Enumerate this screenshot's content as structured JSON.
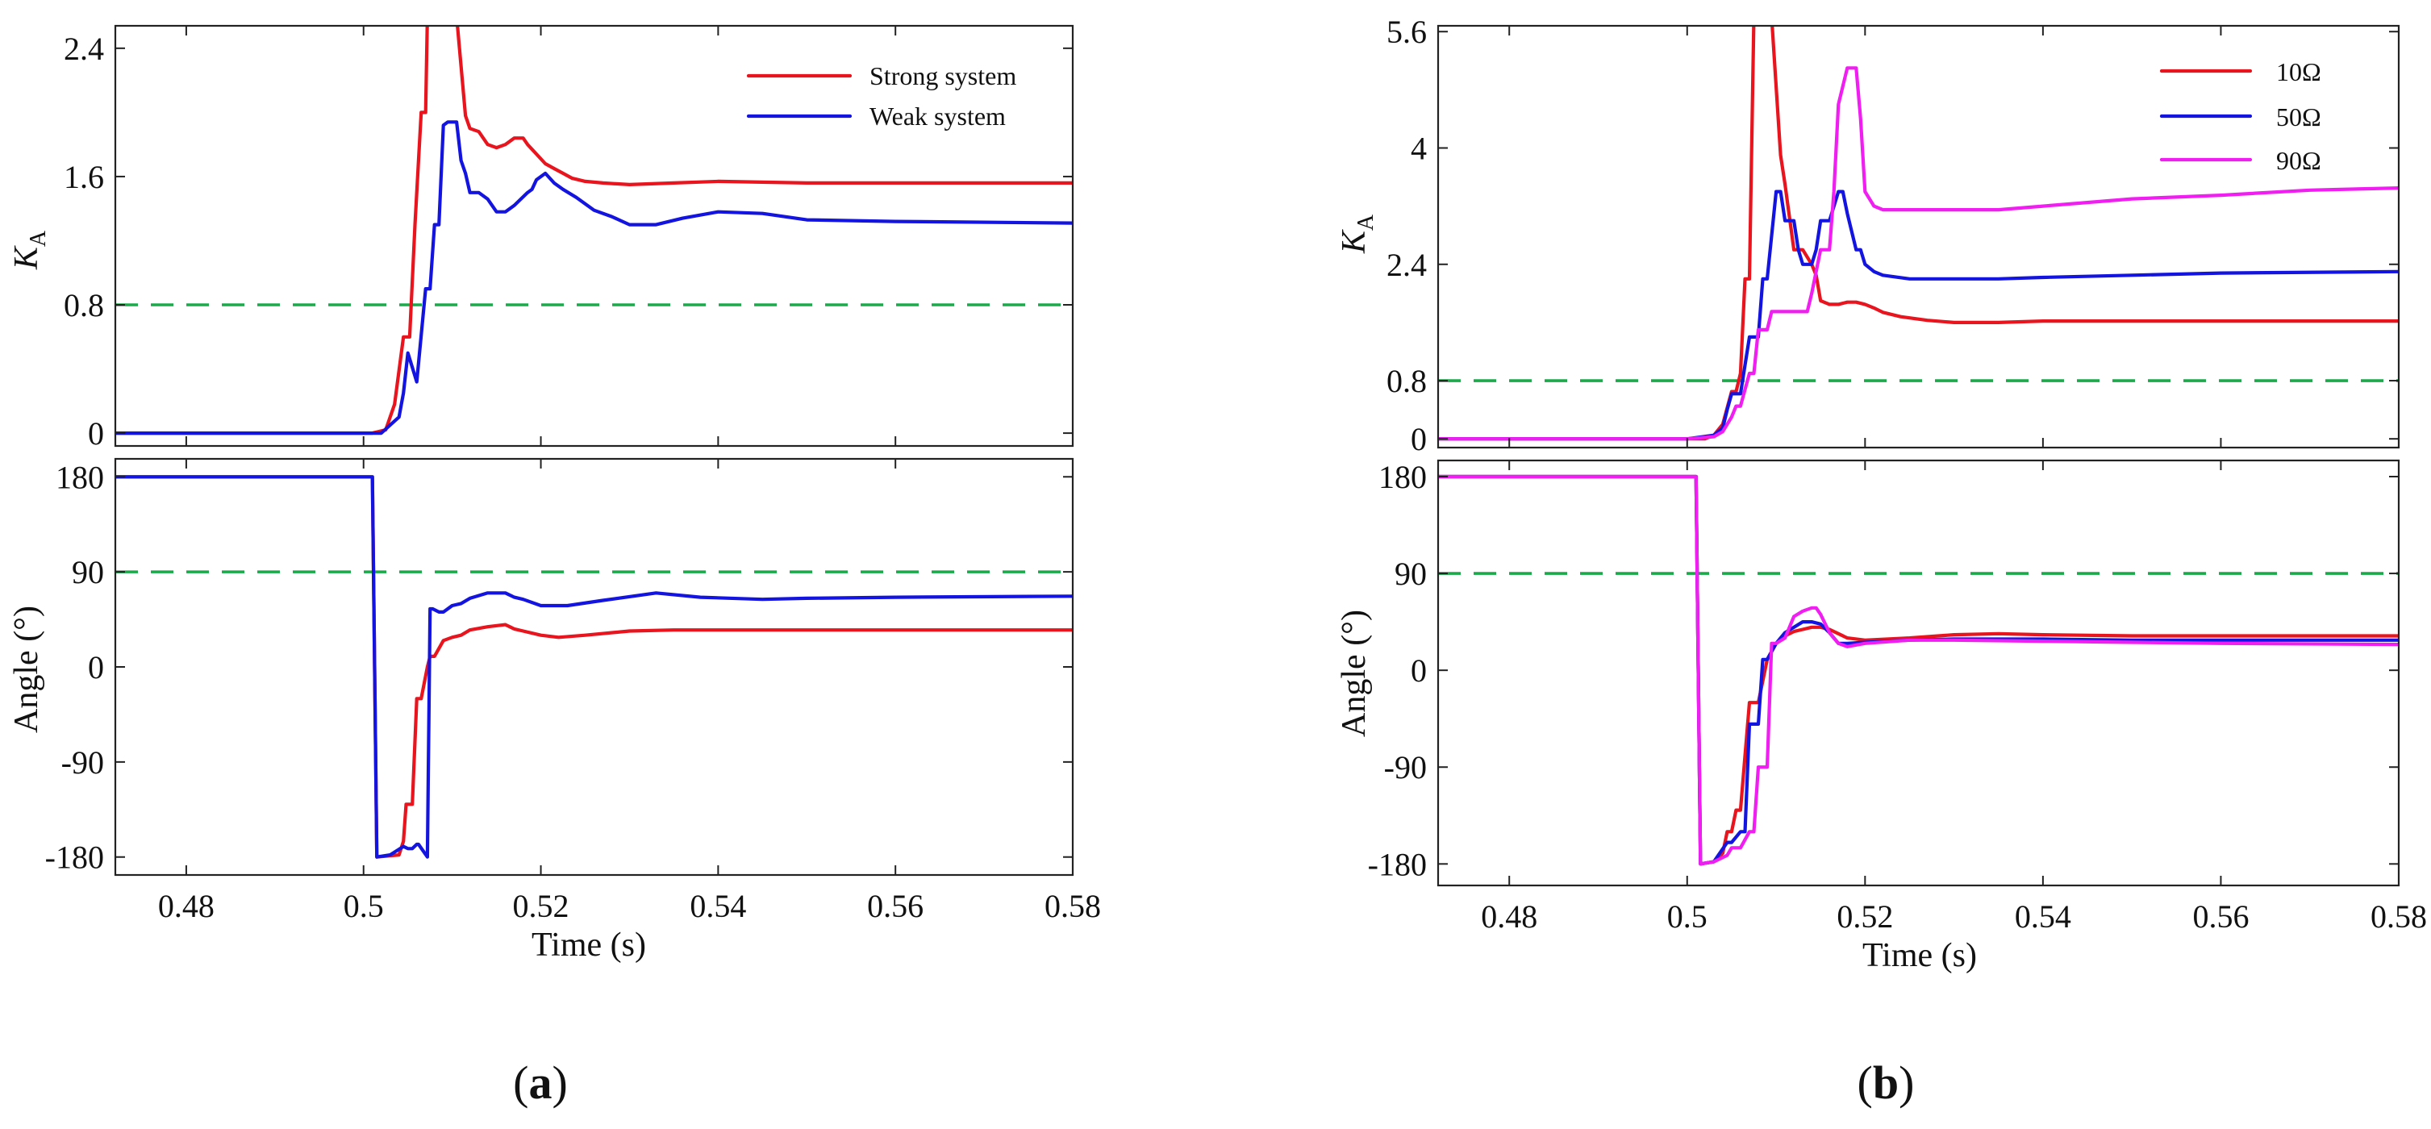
{
  "colors": {
    "strong": "#e8141e",
    "weak": "#1414e0",
    "r10": "#e8141e",
    "r50": "#1414e0",
    "r90": "#f01ef0",
    "threshold": "#1aaa4a",
    "axis": "#222222"
  },
  "chart_data": [
    {
      "type": "line",
      "panel_label": "a",
      "panel_label_display": "(a)",
      "xlabel": "Time (s)",
      "x_ticks": [
        "0.48",
        "0.5",
        "0.52",
        "0.54",
        "0.56",
        "0.58"
      ],
      "xlim": [
        0.472,
        0.58
      ],
      "legend_position": "top-right",
      "subplots": [
        {
          "ylabel": "K",
          "ylabel_sub": "A",
          "y_ticks": [
            "0",
            "0.8",
            "1.6",
            "2.4"
          ],
          "ylim": [
            -0.08,
            2.54
          ],
          "threshold": 0.8,
          "series": [
            {
              "name": "Strong system",
              "color_key": "strong",
              "x": [
                0.472,
                0.5,
                0.501,
                0.5025,
                0.5035,
                0.5045,
                0.5052,
                0.5058,
                0.5065,
                0.507,
                0.5072,
                0.5078,
                0.508,
                0.5095,
                0.5105,
                0.5115,
                0.512,
                0.513,
                0.514,
                0.515,
                0.516,
                0.517,
                0.518,
                0.5185,
                0.5195,
                0.5205,
                0.5215,
                0.5225,
                0.5235,
                0.525,
                0.527,
                0.53,
                0.535,
                0.54,
                0.55,
                0.56,
                0.58
              ],
              "y": [
                0,
                0,
                0,
                0.02,
                0.18,
                0.6,
                0.6,
                1.3,
                2.0,
                2.0,
                2.6,
                2.6,
                2.6,
                2.6,
                2.6,
                1.98,
                1.9,
                1.88,
                1.8,
                1.78,
                1.8,
                1.84,
                1.84,
                1.8,
                1.74,
                1.68,
                1.65,
                1.62,
                1.59,
                1.57,
                1.56,
                1.55,
                1.56,
                1.57,
                1.56,
                1.56,
                1.56
              ]
            },
            {
              "name": "Weak system",
              "color_key": "weak",
              "x": [
                0.472,
                0.5,
                0.502,
                0.503,
                0.504,
                0.5045,
                0.505,
                0.506,
                0.507,
                0.5075,
                0.508,
                0.5085,
                0.509,
                0.5095,
                0.5105,
                0.511,
                0.5115,
                0.512,
                0.513,
                0.514,
                0.515,
                0.516,
                0.517,
                0.5185,
                0.519,
                0.5195,
                0.5205,
                0.5215,
                0.5225,
                0.524,
                0.526,
                0.528,
                0.53,
                0.533,
                0.536,
                0.54,
                0.545,
                0.55,
                0.56,
                0.58
              ],
              "y": [
                0,
                0,
                0,
                0.05,
                0.1,
                0.25,
                0.5,
                0.32,
                0.9,
                0.9,
                1.3,
                1.3,
                1.92,
                1.94,
                1.94,
                1.7,
                1.62,
                1.5,
                1.5,
                1.46,
                1.38,
                1.38,
                1.42,
                1.5,
                1.52,
                1.58,
                1.62,
                1.56,
                1.52,
                1.47,
                1.39,
                1.35,
                1.3,
                1.3,
                1.34,
                1.38,
                1.37,
                1.33,
                1.32,
                1.31
              ]
            }
          ]
        },
        {
          "ylabel": "Angle (°)",
          "y_ticks": [
            "-180",
            "-90",
            "0",
            "90",
            "180"
          ],
          "ylim": [
            -197,
            197
          ],
          "threshold": 90,
          "series": [
            {
              "name": "Strong system",
              "color_key": "strong",
              "x": [
                0.472,
                0.501,
                0.5015,
                0.504,
                0.5045,
                0.5048,
                0.5055,
                0.506,
                0.5065,
                0.5072,
                0.5075,
                0.508,
                0.509,
                0.51,
                0.511,
                0.512,
                0.514,
                0.516,
                0.517,
                0.518,
                0.52,
                0.522,
                0.525,
                0.53,
                0.535,
                0.54,
                0.55,
                0.56,
                0.58
              ],
              "y": [
                180,
                180,
                -180,
                -178,
                -165,
                -130,
                -130,
                -30,
                -30,
                0,
                10,
                10,
                25,
                28,
                30,
                35,
                38,
                40,
                36,
                34,
                30,
                28,
                30,
                34,
                35,
                35,
                35,
                35,
                35
              ]
            },
            {
              "name": "Weak system",
              "color_key": "weak",
              "x": [
                0.472,
                0.501,
                0.5015,
                0.503,
                0.5045,
                0.505,
                0.5055,
                0.506,
                0.5062,
                0.5072,
                0.5075,
                0.5078,
                0.5085,
                0.509,
                0.51,
                0.511,
                0.512,
                0.514,
                0.516,
                0.517,
                0.518,
                0.52,
                0.523,
                0.527,
                0.533,
                0.538,
                0.545,
                0.55,
                0.56,
                0.58
              ],
              "y": [
                180,
                180,
                -180,
                -178,
                -170,
                -172,
                -172,
                -168,
                -168,
                -180,
                55,
                55,
                52,
                52,
                58,
                60,
                65,
                70,
                70,
                66,
                64,
                58,
                58,
                63,
                70,
                66,
                64,
                65,
                66,
                67
              ]
            }
          ]
        }
      ]
    },
    {
      "type": "line",
      "panel_label": "b",
      "panel_label_display": "(b)",
      "xlabel": "Time (s)",
      "x_ticks": [
        "0.48",
        "0.5",
        "0.52",
        "0.54",
        "0.56",
        "0.58"
      ],
      "xlim": [
        0.472,
        0.58
      ],
      "legend_position": "top-right",
      "subplots": [
        {
          "ylabel": "K",
          "ylabel_sub": "A",
          "y_ticks": [
            "0",
            "0.8",
            "2.4",
            "4",
            "5.6"
          ],
          "ylim": [
            -0.12,
            5.68
          ],
          "threshold": 0.8,
          "series": [
            {
              "name": "10Ω",
              "color_key": "r10",
              "x": [
                0.472,
                0.5,
                0.502,
                0.503,
                0.504,
                0.505,
                0.5055,
                0.506,
                0.5065,
                0.507,
                0.5075,
                0.508,
                0.5085,
                0.5095,
                0.5105,
                0.511,
                0.512,
                0.513,
                0.514,
                0.5145,
                0.515,
                0.516,
                0.517,
                0.518,
                0.519,
                0.52,
                0.521,
                0.522,
                0.524,
                0.527,
                0.53,
                0.535,
                0.54,
                0.55,
                0.56,
                0.58
              ],
              "y": [
                0,
                0,
                0,
                0.05,
                0.2,
                0.65,
                0.65,
                0.9,
                2.2,
                2.2,
                5.8,
                5.8,
                5.8,
                5.8,
                3.9,
                3.5,
                2.6,
                2.6,
                2.4,
                2.25,
                1.9,
                1.85,
                1.85,
                1.88,
                1.88,
                1.85,
                1.8,
                1.74,
                1.68,
                1.63,
                1.6,
                1.6,
                1.62,
                1.62,
                1.62,
                1.62
              ]
            },
            {
              "name": "50Ω",
              "color_key": "r50",
              "x": [
                0.472,
                0.5,
                0.503,
                0.504,
                0.5045,
                0.505,
                0.506,
                0.507,
                0.508,
                0.5085,
                0.509,
                0.51,
                0.5105,
                0.511,
                0.512,
                0.5125,
                0.513,
                0.514,
                0.5145,
                0.515,
                0.516,
                0.517,
                0.5175,
                0.518,
                0.519,
                0.5195,
                0.52,
                0.521,
                0.522,
                0.525,
                0.53,
                0.535,
                0.54,
                0.55,
                0.56,
                0.58
              ],
              "y": [
                0,
                0,
                0.05,
                0.15,
                0.4,
                0.62,
                0.62,
                1.4,
                1.4,
                2.2,
                2.2,
                3.4,
                3.4,
                3.0,
                3.0,
                2.6,
                2.4,
                2.4,
                2.6,
                3.0,
                3.0,
                3.4,
                3.4,
                3.1,
                2.6,
                2.6,
                2.4,
                2.3,
                2.25,
                2.2,
                2.2,
                2.2,
                2.22,
                2.25,
                2.28,
                2.3
              ]
            },
            {
              "name": "90Ω",
              "color_key": "r90",
              "x": [
                0.472,
                0.5,
                0.503,
                0.504,
                0.505,
                0.5055,
                0.506,
                0.507,
                0.5075,
                0.508,
                0.509,
                0.5095,
                0.51,
                0.511,
                0.5125,
                0.5135,
                0.514,
                0.515,
                0.516,
                0.5165,
                0.517,
                0.518,
                0.519,
                0.5195,
                0.52,
                0.521,
                0.522,
                0.525,
                0.53,
                0.535,
                0.54,
                0.55,
                0.56,
                0.57,
                0.58
              ],
              "y": [
                0,
                0,
                0.03,
                0.1,
                0.3,
                0.45,
                0.45,
                0.9,
                0.9,
                1.5,
                1.5,
                1.75,
                1.75,
                1.75,
                1.75,
                1.75,
                2.0,
                2.6,
                2.6,
                3.4,
                4.6,
                5.1,
                5.1,
                4.4,
                3.4,
                3.2,
                3.15,
                3.15,
                3.15,
                3.15,
                3.2,
                3.3,
                3.35,
                3.42,
                3.45
              ]
            }
          ]
        },
        {
          "ylabel": "Angle (°)",
          "y_ticks": [
            "-180",
            "-90",
            "0",
            "90",
            "180"
          ],
          "ylim": [
            -200,
            195
          ],
          "threshold": 90,
          "series": [
            {
              "name": "10Ω",
              "color_key": "r10",
              "x": [
                0.472,
                0.501,
                0.5015,
                0.503,
                0.504,
                0.5045,
                0.505,
                0.5055,
                0.506,
                0.507,
                0.508,
                0.509,
                0.51,
                0.511,
                0.512,
                0.513,
                0.514,
                0.515,
                0.516,
                0.517,
                0.518,
                0.52,
                0.525,
                0.53,
                0.535,
                0.54,
                0.55,
                0.56,
                0.58
              ],
              "y": [
                180,
                180,
                -180,
                -178,
                -170,
                -150,
                -150,
                -130,
                -130,
                -30,
                -30,
                10,
                25,
                32,
                36,
                38,
                40,
                40,
                38,
                34,
                30,
                28,
                30,
                33,
                34,
                33,
                32,
                32,
                32
              ]
            },
            {
              "name": "50Ω",
              "color_key": "r50",
              "x": [
                0.472,
                0.501,
                0.5015,
                0.503,
                0.5045,
                0.505,
                0.506,
                0.5065,
                0.507,
                0.508,
                0.5085,
                0.509,
                0.51,
                0.511,
                0.512,
                0.513,
                0.514,
                0.515,
                0.516,
                0.5165,
                0.517,
                0.518,
                0.52,
                0.525,
                0.53,
                0.54,
                0.55,
                0.56,
                0.58
              ],
              "y": [
                180,
                180,
                -180,
                -178,
                -160,
                -160,
                -150,
                -150,
                -50,
                -50,
                10,
                10,
                25,
                35,
                40,
                45,
                45,
                43,
                35,
                30,
                25,
                25,
                26,
                28,
                29,
                29,
                28,
                28,
                28
              ]
            },
            {
              "name": "90Ω",
              "color_key": "r90",
              "x": [
                0.472,
                0.501,
                0.5015,
                0.503,
                0.5045,
                0.505,
                0.506,
                0.507,
                0.5075,
                0.508,
                0.509,
                0.5095,
                0.51,
                0.511,
                0.512,
                0.513,
                0.514,
                0.5145,
                0.515,
                0.516,
                0.517,
                0.518,
                0.52,
                0.525,
                0.53,
                0.54,
                0.55,
                0.56,
                0.58
              ],
              "y": [
                180,
                180,
                -180,
                -178,
                -172,
                -165,
                -165,
                -150,
                -150,
                -90,
                -90,
                25,
                25,
                30,
                50,
                55,
                58,
                58,
                52,
                35,
                25,
                22,
                25,
                28,
                28,
                27,
                26,
                25,
                24
              ]
            }
          ]
        }
      ]
    }
  ]
}
